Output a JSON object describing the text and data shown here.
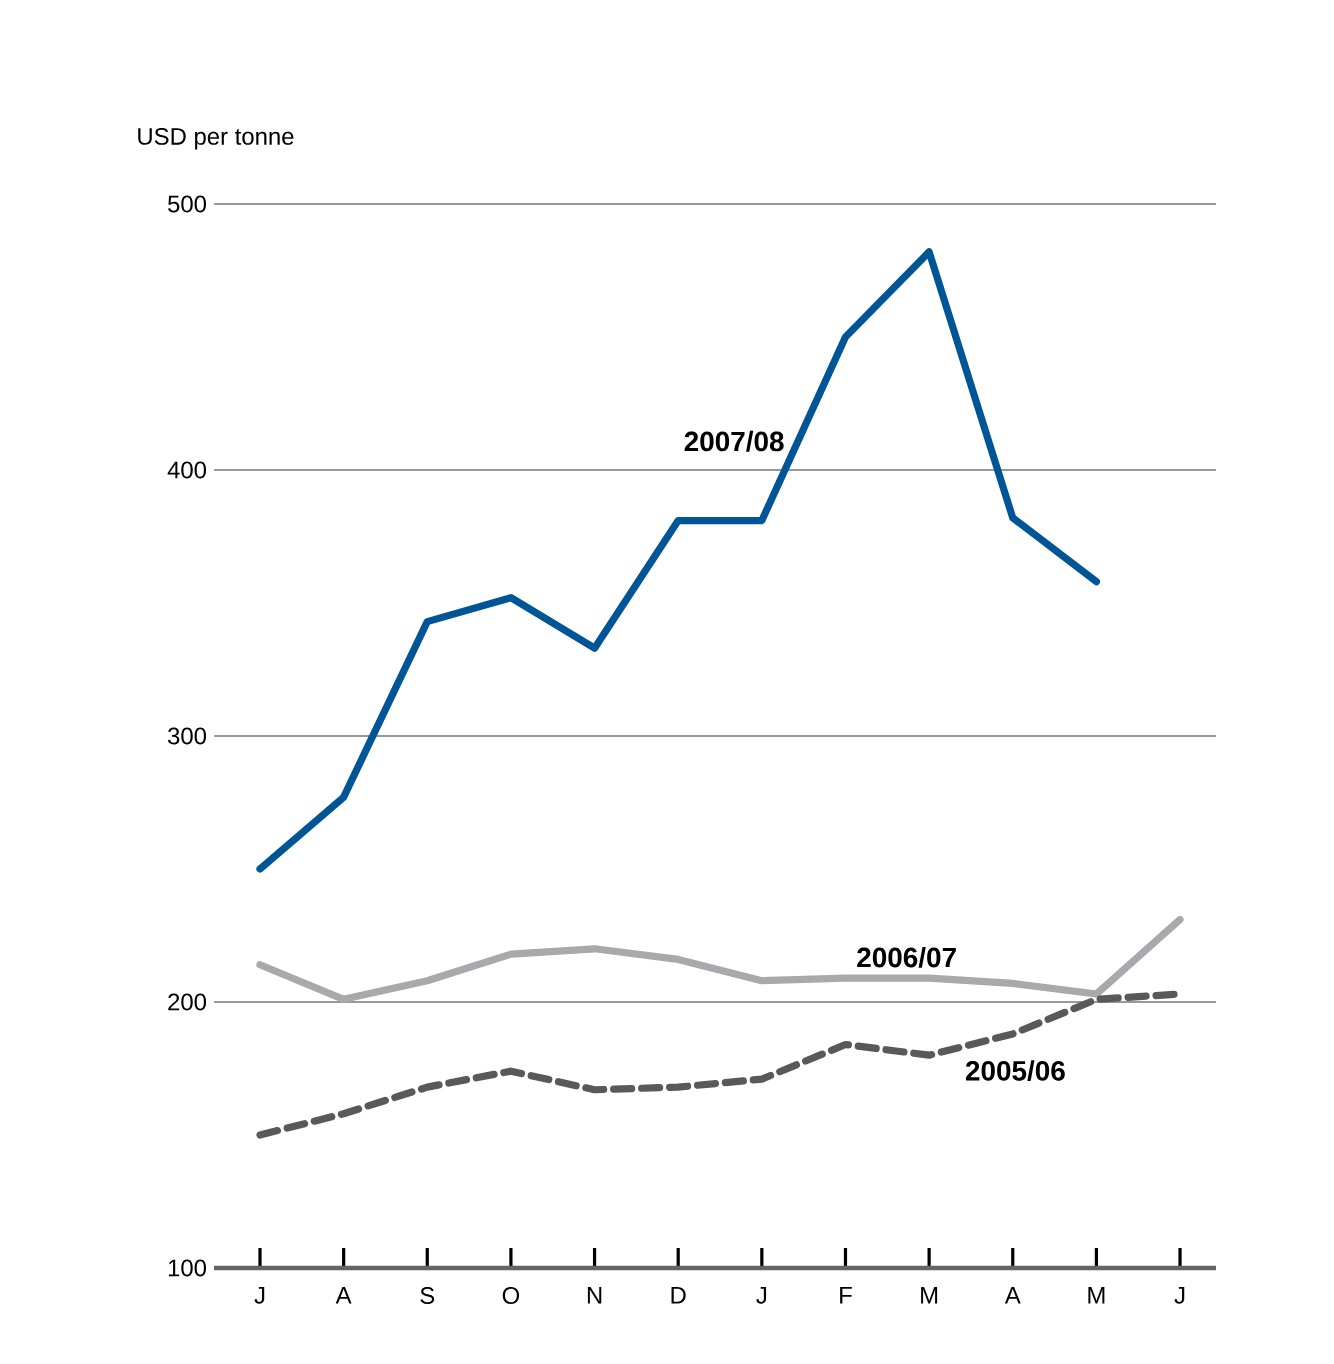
{
  "chart_data": {
    "type": "line",
    "ylabel": "USD per tonne",
    "categories": [
      "J",
      "A",
      "S",
      "O",
      "N",
      "D",
      "J",
      "F",
      "M",
      "A",
      "M",
      "J"
    ],
    "series": [
      {
        "name": "2007/08",
        "color": "#005596",
        "line_style": "solid",
        "values": [
          250,
          277,
          343,
          352,
          333,
          381,
          381,
          450,
          482,
          382,
          358,
          null
        ]
      },
      {
        "name": "2006/07",
        "color": "#a7a9ac",
        "line_style": "solid",
        "values": [
          214,
          201,
          208,
          218,
          220,
          216,
          208,
          209,
          209,
          207,
          203,
          231
        ]
      },
      {
        "name": "2005/06",
        "color": "#58595b",
        "line_style": "dashed",
        "values": [
          150,
          158,
          168,
          174,
          167,
          168,
          171,
          184,
          180,
          188,
          201,
          203
        ]
      }
    ],
    "ylim": [
      100,
      500
    ],
    "yticks": [
      100,
      200,
      300,
      400,
      500
    ],
    "grid": "y",
    "legend": false,
    "marker": "none"
  }
}
